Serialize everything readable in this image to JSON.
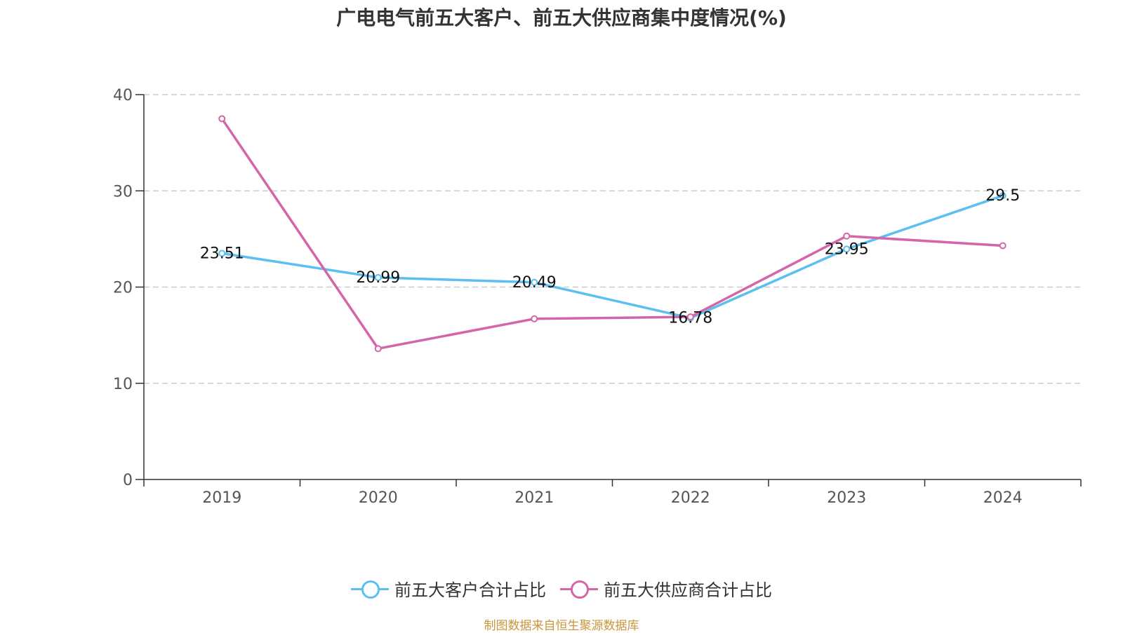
{
  "chart_data": {
    "type": "line",
    "title": "广电电气前五大客户、前五大供应商集中度情况(%)",
    "categories": [
      "2019",
      "2020",
      "2021",
      "2022",
      "2023",
      "2024"
    ],
    "ylim": [
      0,
      40
    ],
    "yticks": [
      0,
      10,
      20,
      30,
      40
    ],
    "grid": true,
    "legend_position": "bottom",
    "series": [
      {
        "name": "前五大客户合计占比",
        "color": "#5bc0f0",
        "values": [
          23.51,
          20.99,
          20.49,
          16.78,
          23.95,
          29.5
        ],
        "labels": [
          "23.51",
          "20.99",
          "20.49",
          "16.78",
          "23.95",
          "29.5"
        ]
      },
      {
        "name": "前五大供应商合计占比",
        "color": "#d466a8",
        "values": [
          37.5,
          13.6,
          16.7,
          16.9,
          25.3,
          24.3
        ],
        "labels": []
      }
    ]
  },
  "source_note": "制图数据来自恒生聚源数据库"
}
